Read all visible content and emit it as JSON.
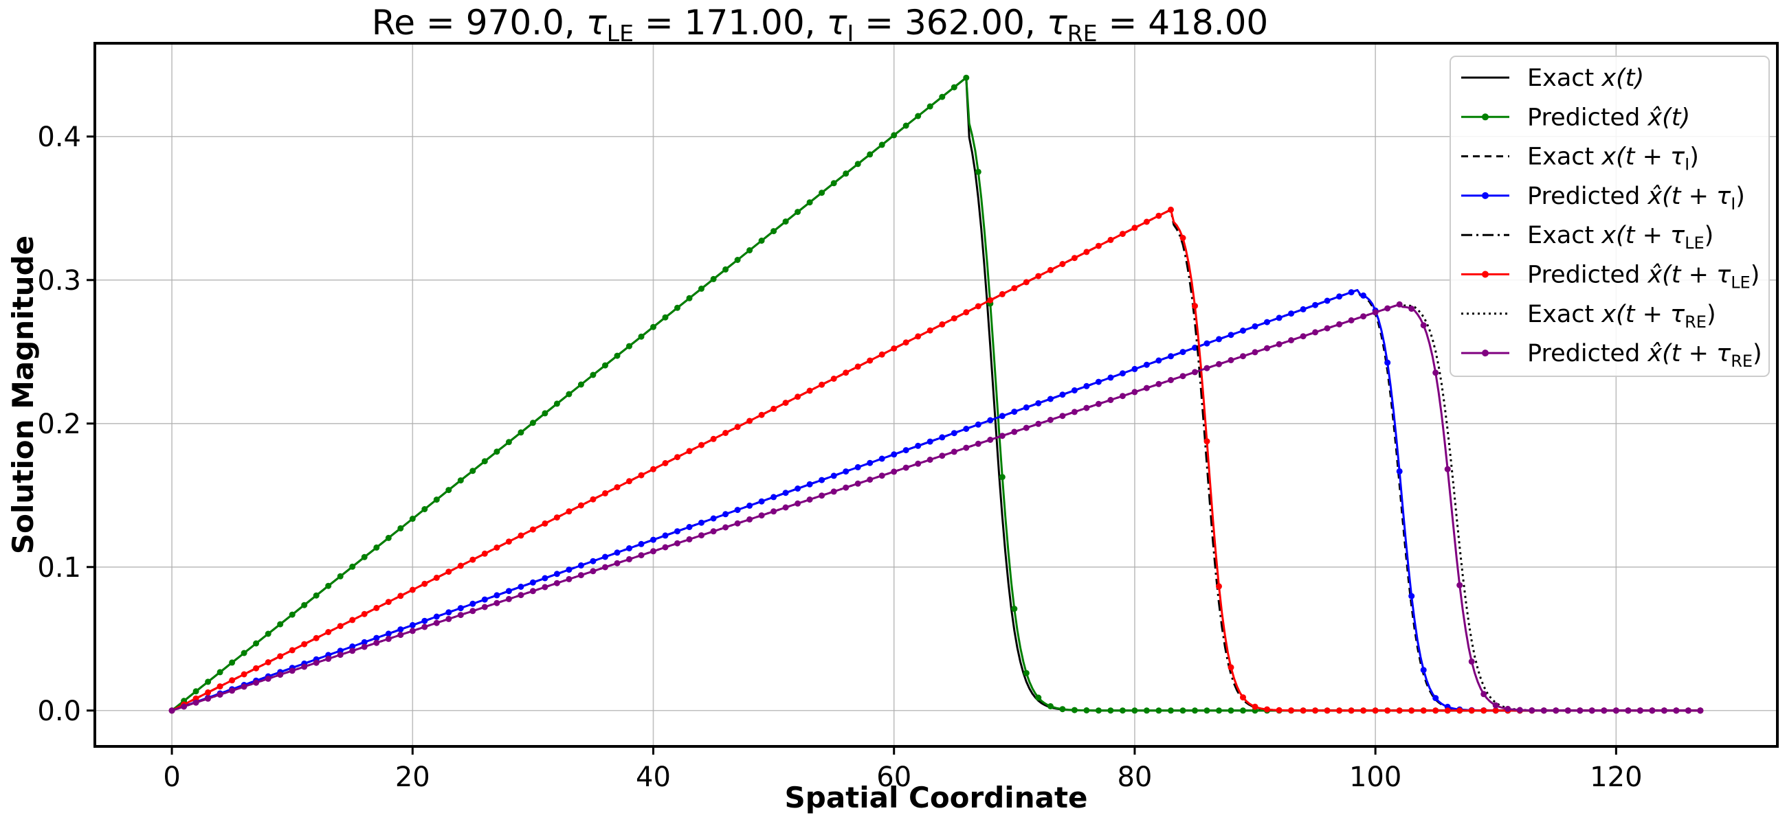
{
  "chart_data": {
    "type": "line",
    "title": "Re = 970.0,  τ_LE = 171.00,  τ_I = 362.00,  τ_RE = 418.00",
    "title_parts": {
      "re": "Re = 970.0,  ",
      "tau": "τ",
      "le_sub": "LE",
      "le_val": " = 171.00,  ",
      "i_sub": "I",
      "i_val": " = 362.00,  ",
      "re_sub": "RE",
      "re_val": " = 418.00"
    },
    "xlabel": "Spatial Coordinate",
    "ylabel": "Solution Magnitude",
    "xlim": [
      -6.4,
      133.4
    ],
    "ylim": [
      -0.025,
      0.465
    ],
    "xticks": [
      0,
      20,
      40,
      60,
      80,
      100,
      120
    ],
    "yticks": [
      0.0,
      0.1,
      0.2,
      0.3,
      0.4
    ],
    "xtick_labels": [
      "0",
      "20",
      "40",
      "60",
      "80",
      "100",
      "120"
    ],
    "ytick_labels": [
      "0.0",
      "0.1",
      "0.2",
      "0.3",
      "0.4"
    ],
    "grid": true,
    "legend_position": "upper-right",
    "colors": {
      "black": "#000000",
      "green": "#008000",
      "blue": "#0000ff",
      "red": "#ff0000",
      "purple": "#800080"
    },
    "waves": [
      {
        "key": "t",
        "peak_x": 66,
        "peak_y": 0.441,
        "front_x": 68.5,
        "front_w": 0.9
      },
      {
        "key": "tI",
        "peak_x": 98.5,
        "peak_y": 0.293,
        "front_x": 102.2,
        "front_w": 0.8
      },
      {
        "key": "tLE",
        "peak_x": 83,
        "peak_y": 0.349,
        "front_x": 86.1,
        "front_w": 0.8
      },
      {
        "key": "tRE",
        "peak_x": 102,
        "peak_y": 0.283,
        "front_x": 106.3,
        "front_w": 0.85
      }
    ],
    "series": [
      {
        "name": "Exact x(t)",
        "legend_base": "Exact ",
        "legend_math": "x(t)",
        "sub": "",
        "tail": "",
        "wave": "t",
        "color": "#000000",
        "dash": "",
        "markers": false,
        "front_shift": -0.25
      },
      {
        "name": "Predicted x̂(t)",
        "legend_base": "Predicted ",
        "legend_math": "x̂(t",
        "sub": "",
        "tail": ")",
        "wave": "t",
        "color": "#008000",
        "dash": "",
        "markers": true,
        "front_shift": 0.0
      },
      {
        "name": "Exact x(t+τ_I)",
        "legend_base": "Exact ",
        "legend_math": "x(t + τ",
        "sub": "I",
        "tail": ")",
        "wave": "tI",
        "color": "#000000",
        "dash": "10,7",
        "markers": false,
        "front_shift": -0.1
      },
      {
        "name": "Predicted x̂(t+τ_I)",
        "legend_base": "Predicted ",
        "legend_math": "x̂(t + τ",
        "sub": "I",
        "tail": ")",
        "wave": "tI",
        "color": "#0000ff",
        "dash": "",
        "markers": true,
        "front_shift": 0.0
      },
      {
        "name": "Exact x(t+τ_LE)",
        "legend_base": "Exact ",
        "legend_math": "x(t + τ",
        "sub": "LE",
        "tail": ")",
        "wave": "tLE",
        "color": "#000000",
        "dash": "16,6,3,6",
        "markers": false,
        "front_shift": -0.15
      },
      {
        "name": "Predicted x̂(t+τ_LE)",
        "legend_base": "Predicted ",
        "legend_math": "x̂(t + τ",
        "sub": "LE",
        "tail": ")",
        "wave": "tLE",
        "color": "#ff0000",
        "dash": "",
        "markers": true,
        "front_shift": 0.0
      },
      {
        "name": "Exact x(t+τ_RE)",
        "legend_base": "Exact ",
        "legend_math": "x(t + τ",
        "sub": "RE",
        "tail": ")",
        "wave": "tRE",
        "color": "#000000",
        "dash": "3,5",
        "markers": false,
        "front_shift": 0.35
      },
      {
        "name": "Predicted x̂(t+τ_RE)",
        "legend_base": "Predicted ",
        "legend_math": "x̂(t + τ",
        "sub": "RE",
        "tail": ")",
        "wave": "tRE",
        "color": "#800080",
        "dash": "",
        "markers": true,
        "front_shift": 0.0
      }
    ]
  }
}
